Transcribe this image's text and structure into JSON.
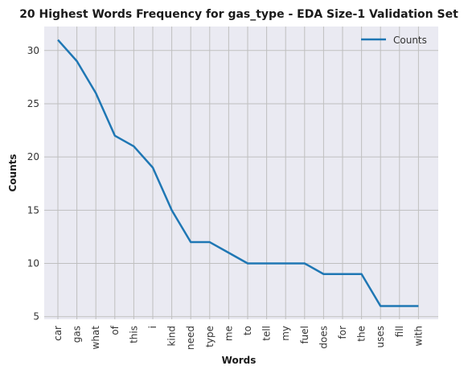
{
  "chart_data": {
    "type": "line",
    "title": "20 Highest Words Frequency for gas_type - EDA Size-1 Validation Set",
    "xlabel": "Words",
    "ylabel": "Counts",
    "categories": [
      "car",
      "gas",
      "what",
      "of",
      "this",
      "i",
      "kind",
      "need",
      "type",
      "me",
      "to",
      "tell",
      "my",
      "fuel",
      "does",
      "for",
      "the",
      "uses",
      "fill",
      "with"
    ],
    "series": [
      {
        "name": "Counts",
        "color": "#1f77b4",
        "values": [
          31,
          29,
          26,
          22,
          21,
          19,
          15,
          12,
          12,
          11,
          10,
          10,
          10,
          10,
          9,
          9,
          9,
          6,
          6,
          6
        ]
      }
    ],
    "yticks": [
      "5",
      "10",
      "15",
      "20",
      "25",
      "30"
    ],
    "ylim": [
      4.75,
      32.25
    ],
    "grid": true,
    "legend": "top-right",
    "background_color": "#eaeaf2",
    "grid_color": "#bfbfbf"
  }
}
